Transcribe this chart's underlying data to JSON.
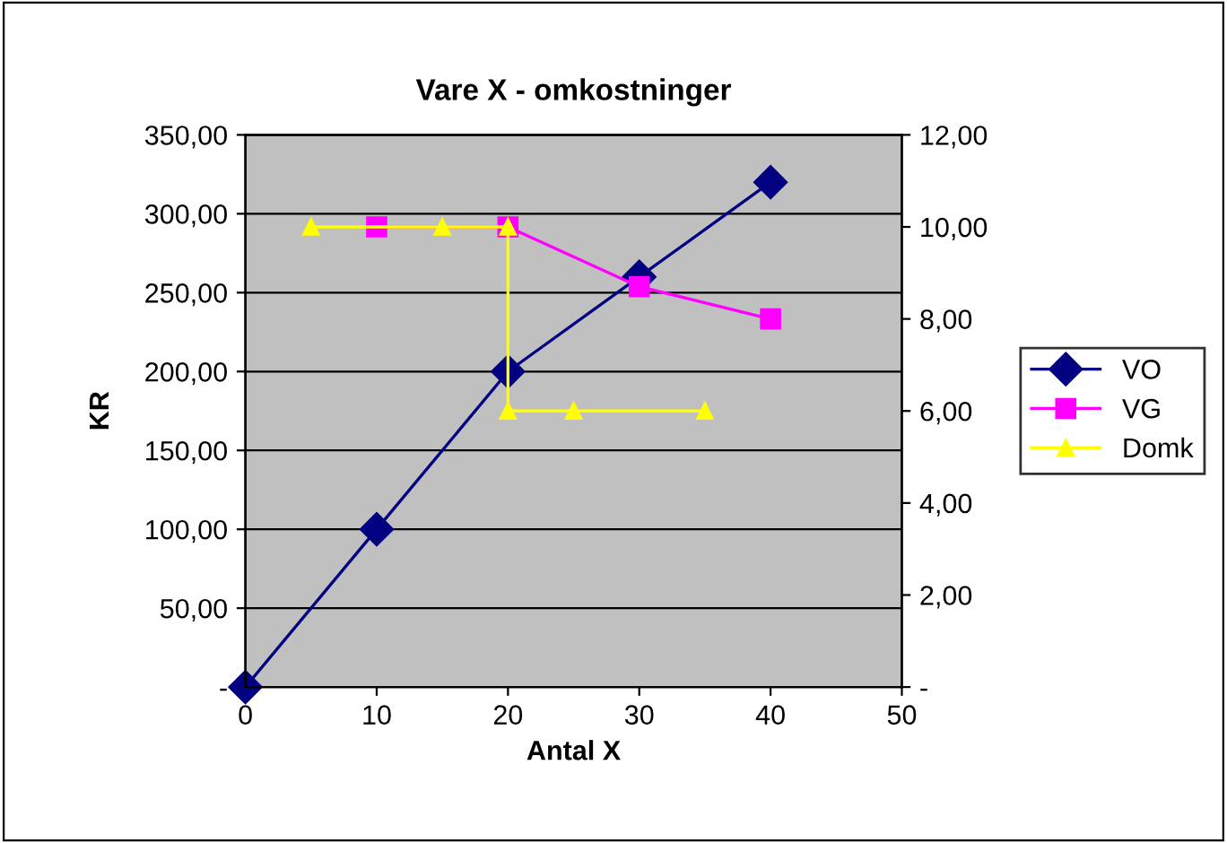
{
  "chart_data": {
    "type": "line",
    "title": "Vare X - omkostninger",
    "xlabel": "Antal X",
    "ylabel": "KR",
    "xlim": [
      0,
      50
    ],
    "xticks": [
      0,
      10,
      20,
      30,
      40,
      50
    ],
    "ylim": [
      0,
      350
    ],
    "yticks": [
      {
        "value": 0,
        "label": "-"
      },
      {
        "value": 50,
        "label": "50,00"
      },
      {
        "value": 100,
        "label": "100,00"
      },
      {
        "value": 150,
        "label": "150,00"
      },
      {
        "value": 200,
        "label": "200,00"
      },
      {
        "value": 250,
        "label": "250,00"
      },
      {
        "value": 300,
        "label": "300,00"
      },
      {
        "value": 350,
        "label": "350,00"
      }
    ],
    "y2lim": [
      0,
      12
    ],
    "y2ticks": [
      {
        "value": 0,
        "label": "-"
      },
      {
        "value": 2,
        "label": "2,00"
      },
      {
        "value": 4,
        "label": "4,00"
      },
      {
        "value": 6,
        "label": "6,00"
      },
      {
        "value": 8,
        "label": "8,00"
      },
      {
        "value": 10,
        "label": "10,00"
      },
      {
        "value": 12,
        "label": "12,00"
      }
    ],
    "grid": "y",
    "legend": "right",
    "series": [
      {
        "name": "VO",
        "color": "#000080",
        "marker": "diamond",
        "x": [
          0,
          10,
          20,
          30,
          40
        ],
        "values": [
          0,
          100,
          200,
          260,
          320
        ]
      },
      {
        "name": "VG",
        "color": "#ff00ff",
        "marker": "square",
        "axis": "y2",
        "x": [
          10,
          20,
          30,
          40
        ],
        "values": [
          10,
          10,
          8.7,
          8
        ]
      },
      {
        "name": "Domk",
        "color": "#ffff00",
        "marker": "triangle",
        "axis": "y2",
        "x": [
          5,
          15,
          20,
          20,
          25,
          35
        ],
        "values": [
          10,
          10,
          10,
          6,
          6,
          6
        ]
      }
    ]
  }
}
